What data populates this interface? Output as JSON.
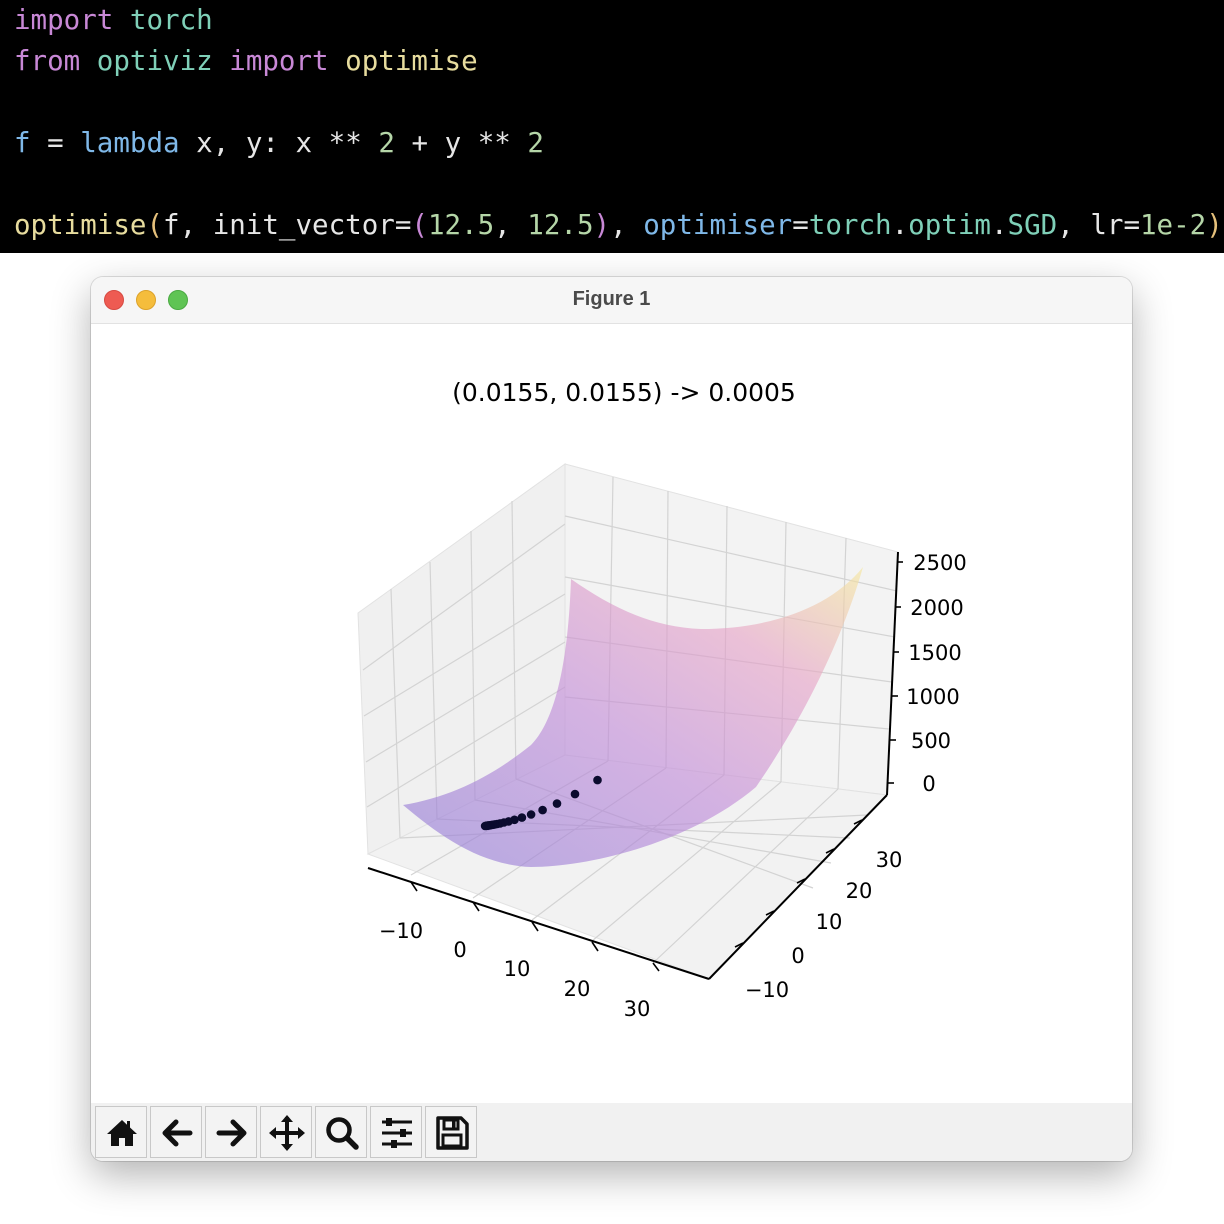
{
  "code": {
    "line1": {
      "kw": "import",
      "mod": "torch"
    },
    "line2": {
      "kw1": "from",
      "mod": "optiviz",
      "kw2": "import",
      "fn": "optimise"
    },
    "line3": {
      "var": "f",
      "op": "=",
      "lambda": "lambda",
      "args": "x, y:",
      "expr_x": "x",
      "pow1": "**",
      "n1": "2",
      "plus": "+",
      "expr_y": "y",
      "pow2": "**",
      "n2": "2"
    },
    "line4": {
      "fn": "optimise",
      "paren_open": "(",
      "arg_f": "f, ",
      "kw_init": "init_vector",
      "eq": "=",
      "tuple_open": "(",
      "v1": "12.5",
      "comma": ", ",
      "v2": "12.5",
      "tuple_close": ")",
      "sep": ", ",
      "kw_opt": "optimiser",
      "eq2": "=",
      "mod_torch": "torch",
      "dot1": ".",
      "mod_optim": "optim",
      "dot2": ".",
      "cls": "SGD",
      "sep2": ", ",
      "kw_lr": "lr",
      "eq3": "=",
      "lr_val": "1e-2",
      "paren_close": ")"
    }
  },
  "window": {
    "title": "Figure 1",
    "close_color": "#ee5b52",
    "minimize_color": "#f5bd3c",
    "maximize_color": "#5fc454"
  },
  "toolbar": {
    "buttons": [
      "home-icon",
      "back-arrow-icon",
      "forward-arrow-icon",
      "pan-icon",
      "zoom-icon",
      "configure-subplots-icon",
      "save-icon"
    ]
  },
  "chart_data": {
    "type": "surface3d",
    "title": "(0.0155, 0.0155) -> 0.0005",
    "function": "x ** 2 + y ** 2",
    "x_ticks": [
      "−10",
      "0",
      "10",
      "20",
      "30"
    ],
    "y_ticks": [
      "−10",
      "0",
      "10",
      "20",
      "30"
    ],
    "z_ticks": [
      "0",
      "500",
      "1000",
      "1500",
      "2000",
      "2500"
    ],
    "xlim": [
      -15,
      35
    ],
    "ylim": [
      -15,
      35
    ],
    "zlim": [
      0,
      2500
    ],
    "colormap": [
      "#8e7ad6",
      "#c08ad8",
      "#e6a2c6",
      "#f5e79a"
    ],
    "trajectory": {
      "x": [
        12.5,
        10.0,
        8.0,
        6.4,
        5.12,
        4.1,
        3.28,
        2.62,
        2.1,
        1.68,
        1.34,
        1.07,
        0.86,
        0.69,
        0.55,
        0.44,
        0.35,
        0.28,
        0.22,
        0.18,
        0.14,
        0.0155
      ],
      "y": [
        12.5,
        10.0,
        8.0,
        6.4,
        5.12,
        4.1,
        3.28,
        2.62,
        2.1,
        1.68,
        1.34,
        1.07,
        0.86,
        0.69,
        0.55,
        0.44,
        0.35,
        0.28,
        0.22,
        0.18,
        0.14,
        0.0155
      ],
      "color": "#0b0b2e"
    },
    "grid": true
  }
}
